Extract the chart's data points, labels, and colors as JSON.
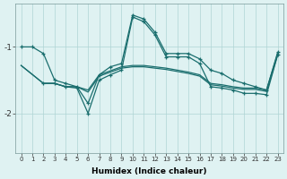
{
  "xlabel": "Humidex (Indice chaleur)",
  "background_color": "#dff2f2",
  "grid_color": "#afd4d4",
  "line_color": "#1a6e6e",
  "xlim": [
    -0.5,
    23.5
  ],
  "ylim": [
    -2.6,
    -0.35
  ],
  "yticks": [
    -2,
    -1
  ],
  "xticks": [
    0,
    1,
    2,
    3,
    4,
    5,
    6,
    7,
    8,
    9,
    10,
    11,
    12,
    13,
    14,
    15,
    16,
    17,
    18,
    19,
    20,
    21,
    22,
    23
  ],
  "line1_x": [
    0,
    1,
    2,
    3,
    4,
    5,
    6,
    7,
    8,
    9,
    10,
    11,
    12,
    13,
    14,
    15,
    16,
    17,
    18,
    19,
    20,
    21,
    22,
    23
  ],
  "line1_y": [
    -1.0,
    -1.0,
    -1.1,
    -1.5,
    -1.55,
    -1.6,
    -1.85,
    -1.42,
    -1.3,
    -1.25,
    -0.52,
    -0.58,
    -0.78,
    -1.1,
    -1.1,
    -1.1,
    -1.18,
    -1.35,
    -1.4,
    -1.5,
    -1.55,
    -1.6,
    -1.65,
    -1.08
  ],
  "line2_x": [
    2,
    3,
    4,
    5,
    6,
    7,
    8,
    9,
    10,
    11,
    12,
    13,
    14,
    15,
    16,
    17,
    18,
    19,
    20,
    21,
    22,
    23
  ],
  "line2_y": [
    -1.55,
    -1.55,
    -1.6,
    -1.62,
    -2.0,
    -1.5,
    -1.42,
    -1.35,
    -0.55,
    -0.62,
    -0.82,
    -1.15,
    -1.15,
    -1.15,
    -1.25,
    -1.6,
    -1.62,
    -1.65,
    -1.7,
    -1.7,
    -1.72,
    -1.12
  ],
  "line3_x": [
    0,
    2,
    3,
    4,
    5,
    6,
    7,
    8,
    9,
    10,
    11,
    12,
    13,
    14,
    15,
    16,
    17,
    18,
    19,
    20,
    21,
    22,
    23
  ],
  "line3_y": [
    -1.28,
    -1.55,
    -1.55,
    -1.6,
    -1.6,
    -1.65,
    -1.42,
    -1.36,
    -1.3,
    -1.28,
    -1.28,
    -1.3,
    -1.32,
    -1.35,
    -1.38,
    -1.42,
    -1.55,
    -1.57,
    -1.6,
    -1.62,
    -1.62,
    -1.65,
    -1.1
  ],
  "line4_x": [
    0,
    2,
    3,
    4,
    5,
    6,
    7,
    8,
    9,
    10,
    11,
    12,
    13,
    14,
    15,
    16,
    17,
    18,
    19,
    20,
    21,
    22,
    23
  ],
  "line4_y": [
    -1.28,
    -1.55,
    -1.55,
    -1.6,
    -1.6,
    -1.68,
    -1.44,
    -1.38,
    -1.32,
    -1.3,
    -1.3,
    -1.32,
    -1.34,
    -1.37,
    -1.4,
    -1.44,
    -1.57,
    -1.59,
    -1.62,
    -1.64,
    -1.64,
    -1.67,
    -1.12
  ]
}
